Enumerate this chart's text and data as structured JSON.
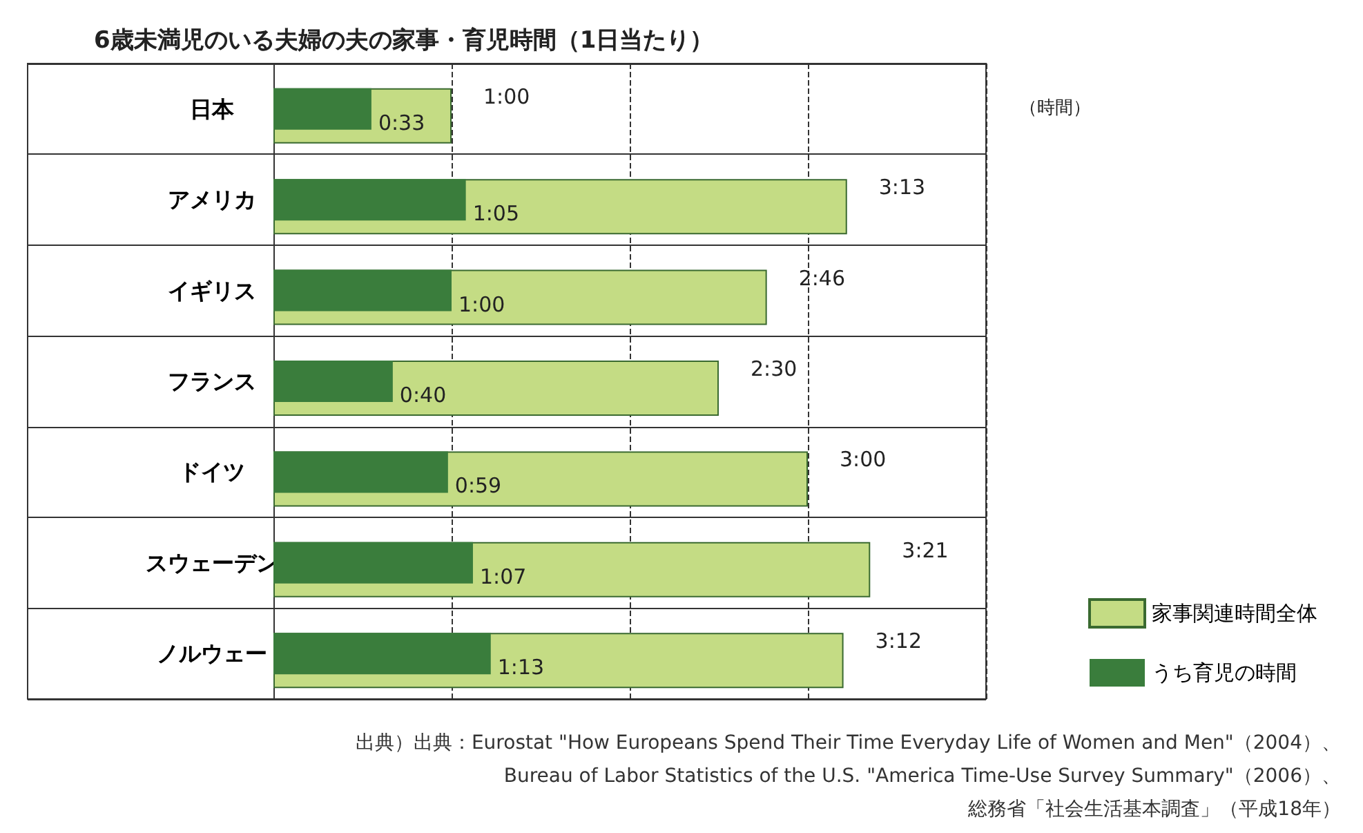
{
  "chart_data": {
    "type": "bar",
    "orientation": "horizontal",
    "title": "6歳未満児のいる夫婦の夫の家事・育児時間（1日当たり）",
    "categories": [
      "日本",
      "アメリカ",
      "イギリス",
      "フランス",
      "ドイツ",
      "スウェーデン",
      "ノルウェー"
    ],
    "series": [
      {
        "name": "家事関連時間全体",
        "color": "#c4dc84",
        "values": [
          1.0,
          3.22,
          2.77,
          2.5,
          3.0,
          3.35,
          3.2
        ],
        "value_labels": [
          "1:00",
          "3:13",
          "2:46",
          "2:30",
          "3:00",
          "3:21",
          "3:12"
        ]
      },
      {
        "name": "うち育児の時間",
        "color": "#3a7d3c",
        "values": [
          0.55,
          1.08,
          1.0,
          0.67,
          0.98,
          1.12,
          1.22
        ],
        "value_labels": [
          "0:33",
          "1:05",
          "1:00",
          "0:40",
          "0:59",
          "1:07",
          "1:13"
        ]
      }
    ],
    "xlim": [
      0,
      4
    ],
    "xticks": [
      {
        "value": 0,
        "label": null
      },
      {
        "value": 1,
        "label": null
      },
      {
        "value": 2,
        "label": null
      },
      {
        "value": 3,
        "label": null
      },
      {
        "value": 4,
        "label": null
      }
    ],
    "tick_labels": "y",
    "grid": "x",
    "legend": "right",
    "annotations": [
      "（時間）",
      "出典）出典：Eurostat \"How Europeans Spend Their Time Everyday Life of Women and Men\"（2004）、",
      "Bureau of Labor Statistics of the U.S. \"America Time-Use Survey Summary\"（2006）、",
      "総務省「社会生活基本調査」（平成18年）"
    ]
  }
}
